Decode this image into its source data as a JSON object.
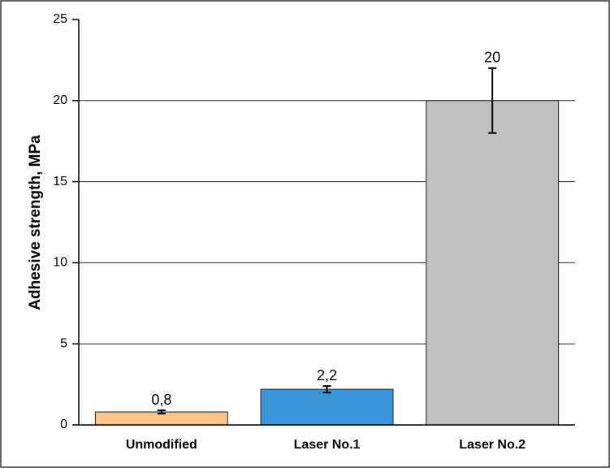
{
  "chart_data": {
    "type": "bar",
    "y_label": "Adhesive strength, MPa",
    "categories": [
      "Unmodified",
      "Laser No.1",
      "Laser No.2"
    ],
    "values": [
      0.8,
      2.2,
      20
    ],
    "value_labels": [
      "0,8",
      "2,2",
      "20"
    ],
    "errors": [
      0.1,
      0.2,
      2
    ],
    "colors": [
      "#fbc58b",
      "#3a96d8",
      "#c0c0c0"
    ],
    "ylim": [
      0,
      25
    ],
    "yticks": [
      0,
      5,
      10,
      15,
      20,
      25
    ],
    "grid": true
  }
}
